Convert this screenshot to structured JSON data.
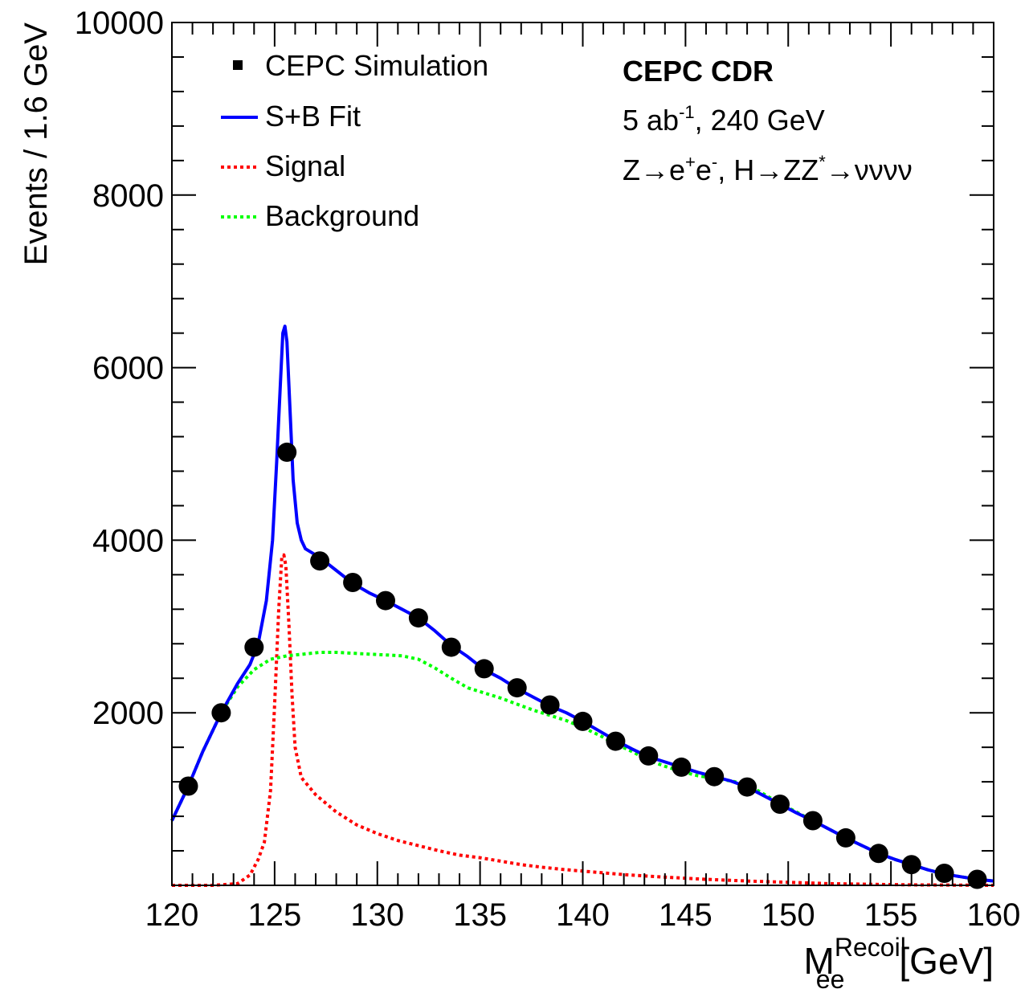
{
  "chart_data": {
    "type": "scatter",
    "ylabel": "Events / 1.6  GeV",
    "xlabel": {
      "base": "M",
      "sup": "Recoil",
      "sub": "ee",
      "unit": "[GeV]"
    },
    "xlim": [
      120,
      160
    ],
    "ylim": [
      0,
      10000
    ],
    "x_ticks": [
      120,
      125,
      130,
      135,
      140,
      145,
      150,
      155,
      160
    ],
    "y_ticks": [
      2000,
      4000,
      6000,
      8000,
      10000
    ],
    "grid": false,
    "legend_position": "top-left",
    "legend": [
      {
        "label": "CEPC Simulation",
        "kind": "marker",
        "color": "#000000"
      },
      {
        "label": "S+B Fit",
        "kind": "solid",
        "color": "#0000ff"
      },
      {
        "label": "Signal",
        "kind": "dotted",
        "color": "#ff0000"
      },
      {
        "label": "Background",
        "kind": "dotted",
        "color": "#00ff00"
      }
    ],
    "annotations": {
      "title": "CEPC CDR",
      "lumi": {
        "pre": "5 ab",
        "sup": "-1",
        "post": ", 240 GeV"
      },
      "process": {
        "a": "Z→e",
        "a_sup": "+",
        "b": "e",
        "b_sup": "-",
        "c": ", H→ZZ",
        "c_sup": "*",
        "d": "→νννν"
      }
    },
    "series": [
      {
        "name": "CEPC Simulation",
        "style": "markers",
        "color": "#000000",
        "x": [
          120.8,
          122.4,
          124.0,
          125.6,
          127.2,
          128.8,
          130.4,
          132.0,
          133.6,
          135.2,
          136.8,
          138.4,
          140.0,
          141.6,
          143.2,
          144.8,
          146.4,
          148.0,
          149.6,
          151.2,
          152.8,
          154.4,
          156.0,
          157.6,
          159.2
        ],
        "y": [
          1150,
          2000,
          2760,
          5020,
          3760,
          3510,
          3300,
          3100,
          2760,
          2510,
          2290,
          2090,
          1900,
          1670,
          1500,
          1370,
          1260,
          1140,
          940,
          750,
          550,
          370,
          240,
          140,
          70
        ]
      },
      {
        "name": "S+B Fit",
        "style": "solid",
        "color": "#0000ff",
        "x": [
          120.0,
          120.8,
          121.5,
          122.4,
          123.2,
          123.8,
          124.2,
          124.6,
          124.9,
          125.1,
          125.3,
          125.4,
          125.5,
          125.6,
          125.75,
          125.9,
          126.1,
          126.3,
          126.5,
          127.2,
          128.0,
          128.8,
          129.6,
          130.4,
          131.2,
          132.0,
          132.8,
          133.6,
          134.4,
          135.2,
          136.0,
          136.8,
          137.6,
          138.4,
          139.2,
          140.0,
          140.8,
          141.6,
          142.4,
          143.2,
          144.0,
          144.8,
          145.6,
          146.4,
          147.2,
          148.0,
          148.8,
          149.6,
          150.4,
          151.2,
          152.0,
          152.8,
          153.6,
          154.4,
          155.2,
          156.0,
          156.8,
          157.6,
          158.4,
          159.2,
          160.0
        ],
        "y": [
          750,
          1150,
          1550,
          2000,
          2340,
          2560,
          2800,
          3300,
          4000,
          4900,
          5900,
          6400,
          6480,
          6300,
          5500,
          4700,
          4200,
          4000,
          3900,
          3800,
          3650,
          3500,
          3390,
          3300,
          3200,
          3100,
          2950,
          2780,
          2650,
          2500,
          2400,
          2280,
          2180,
          2080,
          2000,
          1900,
          1790,
          1680,
          1580,
          1490,
          1430,
          1370,
          1310,
          1260,
          1210,
          1140,
          1040,
          940,
          840,
          750,
          650,
          550,
          460,
          370,
          300,
          240,
          180,
          130,
          100,
          70,
          50
        ]
      },
      {
        "name": "Signal",
        "style": "dotted",
        "color": "#ff0000",
        "x": [
          120.0,
          122.0,
          123.2,
          123.8,
          124.2,
          124.5,
          124.8,
          125.0,
          125.2,
          125.35,
          125.45,
          125.55,
          125.7,
          125.85,
          126.0,
          126.3,
          127.0,
          128.0,
          129.0,
          130.0,
          131.0,
          132.0,
          133.0,
          134.0,
          135.0,
          136.0,
          137.0,
          138.0,
          139.0,
          140.0,
          142.0,
          144.0,
          146.0,
          148.0,
          150.0,
          152.0,
          154.0,
          156.0,
          158.0,
          160.0
        ],
        "y": [
          0,
          0,
          20,
          120,
          300,
          500,
          1100,
          2100,
          3200,
          3800,
          3830,
          3700,
          3000,
          2200,
          1600,
          1250,
          1050,
          850,
          700,
          600,
          520,
          460,
          400,
          350,
          320,
          280,
          240,
          210,
          185,
          165,
          125,
          95,
          70,
          50,
          35,
          20,
          12,
          6,
          3,
          0
        ]
      },
      {
        "name": "Background",
        "style": "dotted",
        "color": "#00ff00",
        "x": [
          120.0,
          120.8,
          121.5,
          122.4,
          123.2,
          124.0,
          124.8,
          125.6,
          126.4,
          127.2,
          128.0,
          128.8,
          129.6,
          130.4,
          131.2,
          132.0,
          132.8,
          133.6,
          134.4,
          135.2,
          136.0,
          136.8,
          137.6,
          138.4,
          139.2,
          140.0,
          140.8,
          141.6,
          142.4,
          143.2,
          144.0,
          144.8,
          145.6,
          146.4,
          147.2,
          148.0,
          148.8,
          149.6,
          150.4,
          151.2,
          152.0,
          152.8,
          153.6,
          154.4,
          155.2,
          156.0,
          156.8,
          157.6,
          158.4,
          159.2,
          160.0
        ],
        "y": [
          750,
          1150,
          1550,
          2000,
          2300,
          2500,
          2620,
          2660,
          2680,
          2700,
          2700,
          2690,
          2680,
          2670,
          2660,
          2620,
          2520,
          2400,
          2290,
          2230,
          2170,
          2100,
          2030,
          1970,
          1910,
          1830,
          1740,
          1640,
          1550,
          1450,
          1380,
          1320,
          1270,
          1240,
          1210,
          1170,
          1060,
          950,
          850,
          750,
          650,
          550,
          460,
          370,
          300,
          240,
          180,
          130,
          100,
          70,
          50
        ]
      }
    ]
  }
}
